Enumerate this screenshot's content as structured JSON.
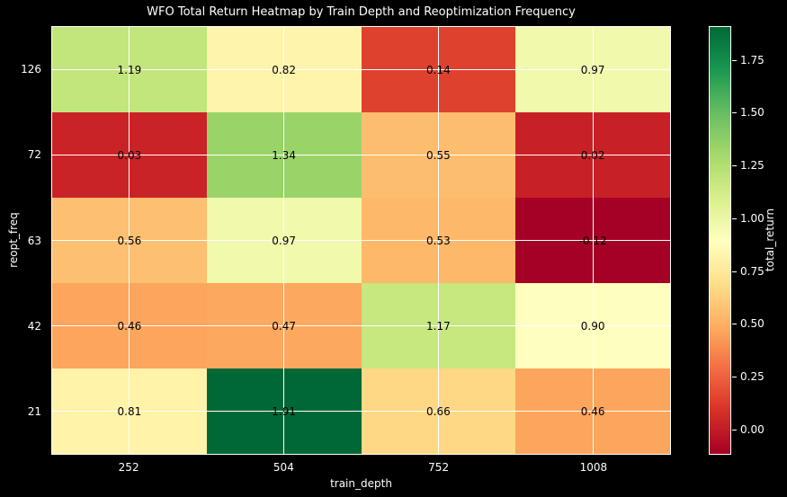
{
  "figure": {
    "background": "#000000",
    "text_color": "#ffffff"
  },
  "chart_data": {
    "type": "heatmap",
    "title": "WFO Total Return Heatmap by Train Depth and Reoptimization Frequency",
    "xlabel": "train_depth",
    "ylabel": "reopt_freq",
    "x_categories": [
      "252",
      "504",
      "752",
      "1008"
    ],
    "y_categories": [
      "126",
      "72",
      "63",
      "42",
      "21"
    ],
    "values": [
      [
        1.19,
        0.82,
        0.14,
        0.97
      ],
      [
        0.03,
        1.34,
        0.55,
        0.02
      ],
      [
        0.56,
        0.97,
        0.53,
        -0.12
      ],
      [
        0.46,
        0.47,
        1.17,
        0.9
      ],
      [
        0.81,
        1.91,
        0.66,
        0.46
      ]
    ],
    "annotation_decimals": 2,
    "annotation_color": "#000000",
    "vmin": -0.12,
    "vmax": 1.91,
    "colormap": "RdYlGn",
    "colormap_anchors": [
      "#a50026",
      "#d73027",
      "#f46d43",
      "#fdae61",
      "#fee08b",
      "#ffffbf",
      "#d9ef8b",
      "#a6d96a",
      "#66bd63",
      "#1a9850",
      "#006837"
    ],
    "grid": true,
    "gridline_color": "#ffffff",
    "legend_position": "right",
    "colorbar": {
      "label": "total_return",
      "tick_labels": [
        "0.00",
        "0.25",
        "0.50",
        "0.75",
        "1.00",
        "1.25",
        "1.50",
        "1.75"
      ],
      "tick_values": [
        0.0,
        0.25,
        0.5,
        0.75,
        1.0,
        1.25,
        1.5,
        1.75
      ]
    }
  }
}
